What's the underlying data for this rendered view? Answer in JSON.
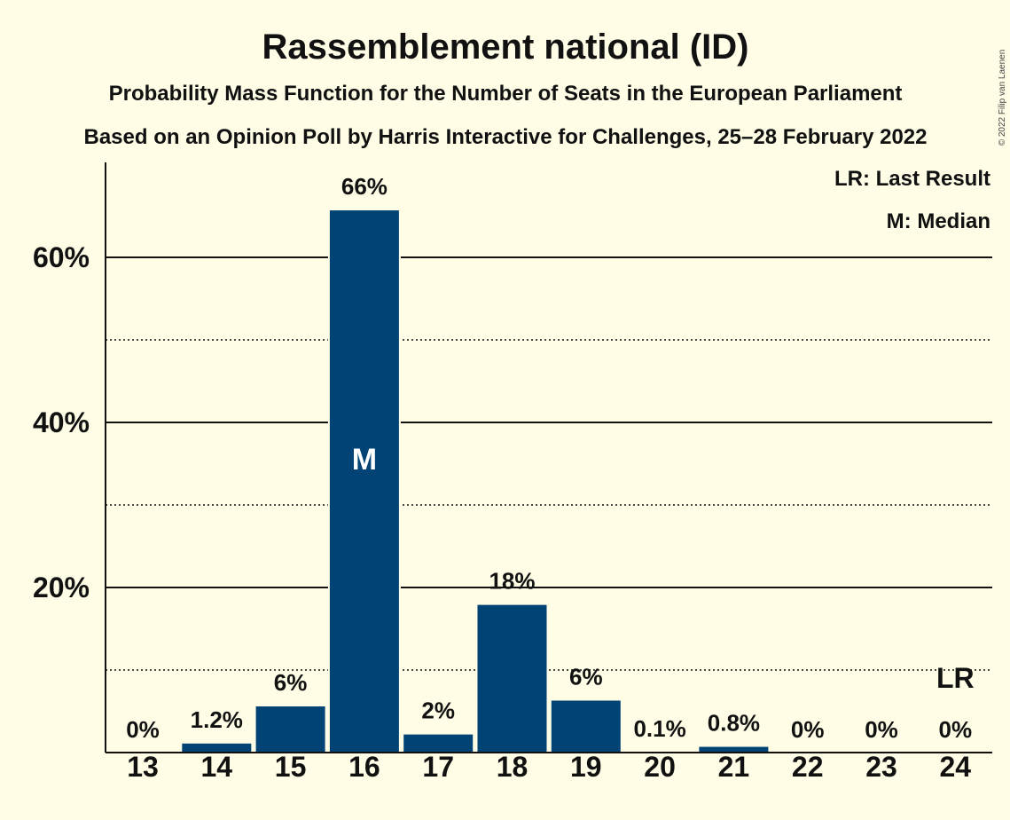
{
  "colors": {
    "background": "#fffde6",
    "bar": "#004374",
    "text": "#111111"
  },
  "chart_data": {
    "type": "bar",
    "title": "Rassemblement national (ID)",
    "subtitle1": "Probability Mass Function for the Number of Seats in the European Parliament",
    "subtitle2": "Based on an Opinion Poll by Harris Interactive for Challenges, 25–28 February 2022",
    "categories": [
      "13",
      "14",
      "15",
      "16",
      "17",
      "18",
      "19",
      "20",
      "21",
      "22",
      "23",
      "24"
    ],
    "values": [
      0,
      1.2,
      5.7,
      65.8,
      2.3,
      18.0,
      6.4,
      0.1,
      0.8,
      0,
      0,
      0
    ],
    "labels": [
      "0%",
      "1.2%",
      "6%",
      "66%",
      "2%",
      "18%",
      "6%",
      "0.1%",
      "0.8%",
      "0%",
      "0%",
      "0%"
    ],
    "ylim": [
      0,
      71
    ],
    "yticks": [
      {
        "value": 20,
        "label": "20%"
      },
      {
        "value": 40,
        "label": "40%"
      },
      {
        "value": 60,
        "label": "60%"
      }
    ],
    "minor_grid": [
      10,
      30,
      50
    ],
    "median_category": "16",
    "median_marker": "M",
    "last_result_category": "24",
    "last_result_marker": "LR",
    "legend": [
      "LR: Last Result",
      "M: Median"
    ],
    "legend_position": "top-right",
    "xlabel": "",
    "ylabel": ""
  },
  "copyright": "© 2022 Filip van Laenen"
}
